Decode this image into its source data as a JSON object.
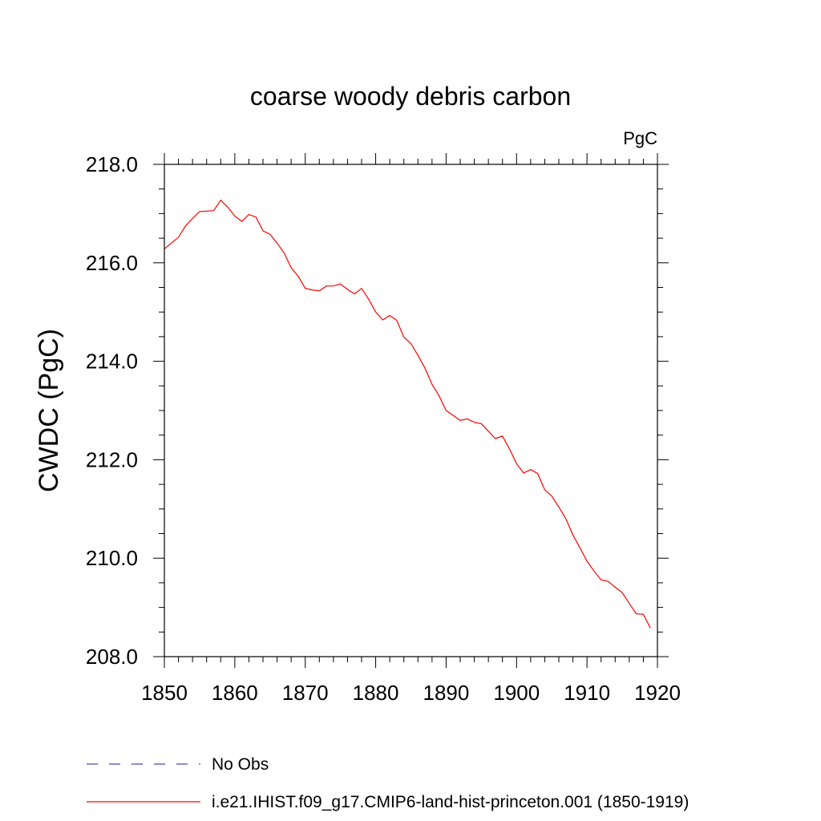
{
  "chart_data": {
    "type": "line",
    "title": "coarse woody debris carbon",
    "units_label": "PgC",
    "ylabel": "CWDC  (PgC)",
    "xlabel": "",
    "xlim": [
      1850,
      1920
    ],
    "ylim": [
      208.0,
      218.0
    ],
    "x_ticks": [
      1850,
      1860,
      1870,
      1880,
      1890,
      1900,
      1910,
      1920
    ],
    "y_ticks": [
      "208.0",
      "210.0",
      "212.0",
      "214.0",
      "216.0",
      "218.0"
    ],
    "grid": false,
    "legend_position": "bottom",
    "legend": [
      {
        "label": "No Obs",
        "color": "#5544aa",
        "style": "dashed"
      },
      {
        "label": "i.e21.IHIST.f09_g17.CMIP6-land-hist-princeton.001 (1850-1919)",
        "color": "#ff0000",
        "style": "solid"
      }
    ],
    "series": [
      {
        "name": "i.e21.IHIST.f09_g17.CMIP6-land-hist-princeton.001 (1850-1919)",
        "color": "#ff0000",
        "x": [
          1850,
          1851,
          1852,
          1853,
          1854,
          1855,
          1856,
          1857,
          1858,
          1859,
          1860,
          1861,
          1862,
          1863,
          1864,
          1865,
          1866,
          1867,
          1868,
          1869,
          1870,
          1871,
          1872,
          1873,
          1874,
          1875,
          1876,
          1877,
          1878,
          1879,
          1880,
          1881,
          1882,
          1883,
          1884,
          1885,
          1886,
          1887,
          1888,
          1889,
          1890,
          1891,
          1892,
          1893,
          1894,
          1895,
          1896,
          1897,
          1898,
          1899,
          1900,
          1901,
          1902,
          1903,
          1904,
          1905,
          1906,
          1907,
          1908,
          1909,
          1910,
          1911,
          1912,
          1913,
          1914,
          1915,
          1916,
          1917,
          1918,
          1919
        ],
        "values": [
          216.28,
          216.4,
          216.52,
          216.75,
          216.9,
          217.04,
          217.05,
          217.06,
          217.27,
          217.13,
          216.95,
          216.84,
          216.98,
          216.93,
          216.65,
          216.58,
          216.4,
          216.2,
          215.9,
          215.73,
          215.48,
          215.45,
          215.43,
          215.53,
          215.53,
          215.57,
          215.46,
          215.37,
          215.48,
          215.26,
          215.0,
          214.84,
          214.93,
          214.83,
          214.49,
          214.36,
          214.12,
          213.86,
          213.53,
          213.3,
          213.0,
          212.9,
          212.8,
          212.83,
          212.76,
          212.73,
          212.58,
          212.43,
          212.48,
          212.22,
          211.92,
          211.73,
          211.8,
          211.72,
          211.39,
          211.26,
          211.04,
          210.8,
          210.47,
          210.21,
          209.94,
          209.74,
          209.56,
          209.53,
          209.41,
          209.3,
          209.08,
          208.87,
          208.86,
          208.58
        ]
      }
    ]
  }
}
